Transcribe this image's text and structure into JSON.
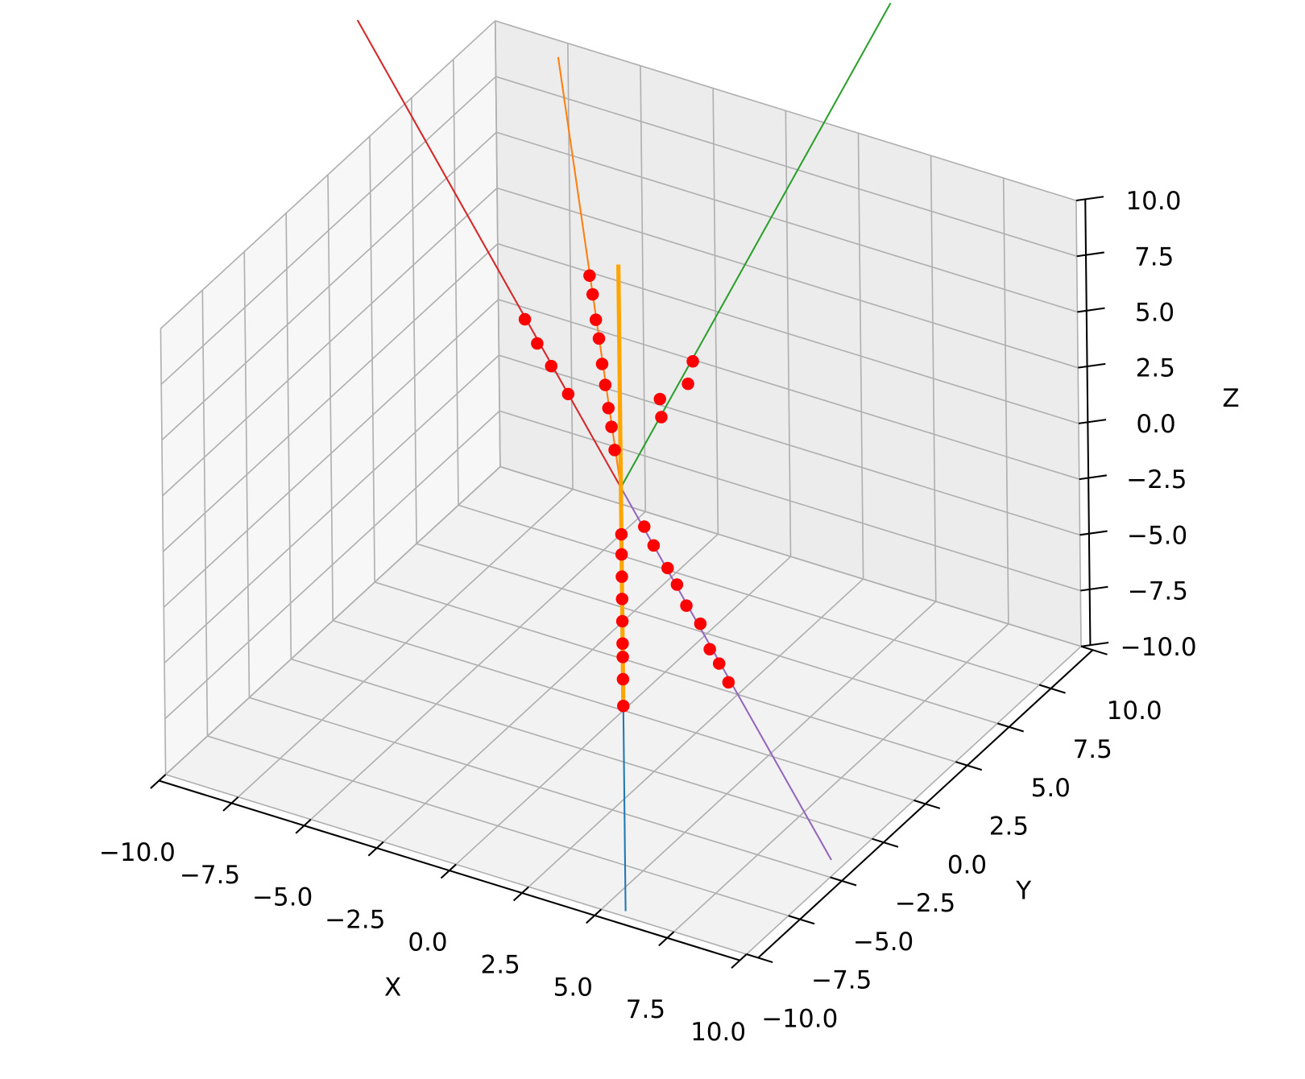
{
  "chart_data": {
    "type": "line3d",
    "xlabel": "X",
    "ylabel": "Y",
    "zlabel": "Z",
    "xlim": [
      -10,
      10
    ],
    "ylim": [
      -10,
      10
    ],
    "zlim": [
      -10,
      10
    ],
    "xticks": [
      {
        "value": -10,
        "label": "−10.0"
      },
      {
        "value": -7.5,
        "label": "−7.5"
      },
      {
        "value": -5,
        "label": "−5.0"
      },
      {
        "value": -2.5,
        "label": "−2.5"
      },
      {
        "value": 0,
        "label": "0.0"
      },
      {
        "value": 2.5,
        "label": "2.5"
      },
      {
        "value": 5,
        "label": "5.0"
      },
      {
        "value": 7.5,
        "label": "7.5"
      },
      {
        "value": 10,
        "label": "10.0"
      }
    ],
    "yticks": [
      {
        "value": -10,
        "label": "−10.0"
      },
      {
        "value": -7.5,
        "label": "−7.5"
      },
      {
        "value": -5,
        "label": "−5.0"
      },
      {
        "value": -2.5,
        "label": "−2.5"
      },
      {
        "value": 0,
        "label": "0.0"
      },
      {
        "value": 2.5,
        "label": "2.5"
      },
      {
        "value": 5,
        "label": "5.0"
      },
      {
        "value": 7.5,
        "label": "7.5"
      },
      {
        "value": 10,
        "label": "10.0"
      }
    ],
    "zticks": [
      {
        "value": -10,
        "label": "−10.0"
      },
      {
        "value": -7.5,
        "label": "−7.5"
      },
      {
        "value": -5,
        "label": "−5.0"
      },
      {
        "value": -2.5,
        "label": "−2.5"
      },
      {
        "value": 0,
        "label": "0.0"
      },
      {
        "value": 2.5,
        "label": "2.5"
      },
      {
        "value": 5,
        "label": "5.0"
      },
      {
        "value": 7.5,
        "label": "7.5"
      },
      {
        "value": 10,
        "label": "10.0"
      }
    ],
    "grid": true,
    "series": [
      {
        "color": "#1f77b4",
        "linewidth": 2,
        "x": [
          0,
          0
        ],
        "y": [
          0,
          0
        ],
        "z": [
          0,
          -19
        ]
      },
      {
        "color": "#ff7f0e",
        "linewidth": 2,
        "x": [
          0,
          -2
        ],
        "y": [
          0,
          0
        ],
        "z": [
          0,
          18.5
        ]
      },
      {
        "color": "#2ca02c",
        "linewidth": 2,
        "x": [
          0,
          6
        ],
        "y": [
          0,
          6
        ],
        "z": [
          0,
          20
        ]
      },
      {
        "color": "#d62728",
        "linewidth": 2,
        "x": [
          0,
          -6
        ],
        "y": [
          0,
          -5
        ],
        "z": [
          0,
          22
        ]
      },
      {
        "color": "#9467bd",
        "linewidth": 2,
        "x": [
          0,
          4.5
        ],
        "y": [
          0,
          4.5
        ],
        "z": [
          0,
          -18
        ]
      },
      {
        "color": "#ffa500",
        "linewidth": 5,
        "x": [
          0,
          0
        ],
        "y": [
          0,
          0
        ],
        "z": [
          -10,
          10
        ]
      }
    ],
    "points": {
      "color": "#ff0000",
      "x": [
        -2.2,
        -1.9,
        -1.6,
        -1.2,
        -1.0,
        -0.9,
        -0.8,
        -0.7,
        -0.6,
        -0.5,
        -0.4,
        -0.3,
        -0.2,
        1.6,
        1.6,
        0.8,
        0.9,
        0,
        0,
        0,
        0,
        0,
        0,
        0,
        0,
        0,
        0.5,
        0.7,
        1.0,
        1.2,
        1.4,
        1.7,
        1.9,
        2.1,
        2.3
      ],
      "y": [
        -1.8,
        -1.6,
        -1.3,
        -1.0,
        0,
        0,
        0,
        0,
        0,
        0,
        0,
        0,
        0,
        1.6,
        1.3,
        1.0,
        0.9,
        0,
        0,
        0,
        0,
        0,
        0,
        0,
        0,
        0,
        0.5,
        0.7,
        1.0,
        1.2,
        1.4,
        1.7,
        1.9,
        2.1,
        2.3
      ],
      "z": [
        7.9,
        6.8,
        5.7,
        4.4,
        9.1,
        8.3,
        7.2,
        6.4,
        5.3,
        4.4,
        3.4,
        2.6,
        1.6,
        5.2,
        4.4,
        3.6,
        2.9,
        -2.1,
        -3.0,
        -4.0,
        -5.0,
        -6.0,
        -7.0,
        -7.6,
        -8.6,
        -9.8,
        -1.9,
        -2.8,
        -3.9,
        -4.7,
        -5.7,
        -6.6,
        -7.8,
        -8.5,
        -9.4
      ]
    }
  }
}
